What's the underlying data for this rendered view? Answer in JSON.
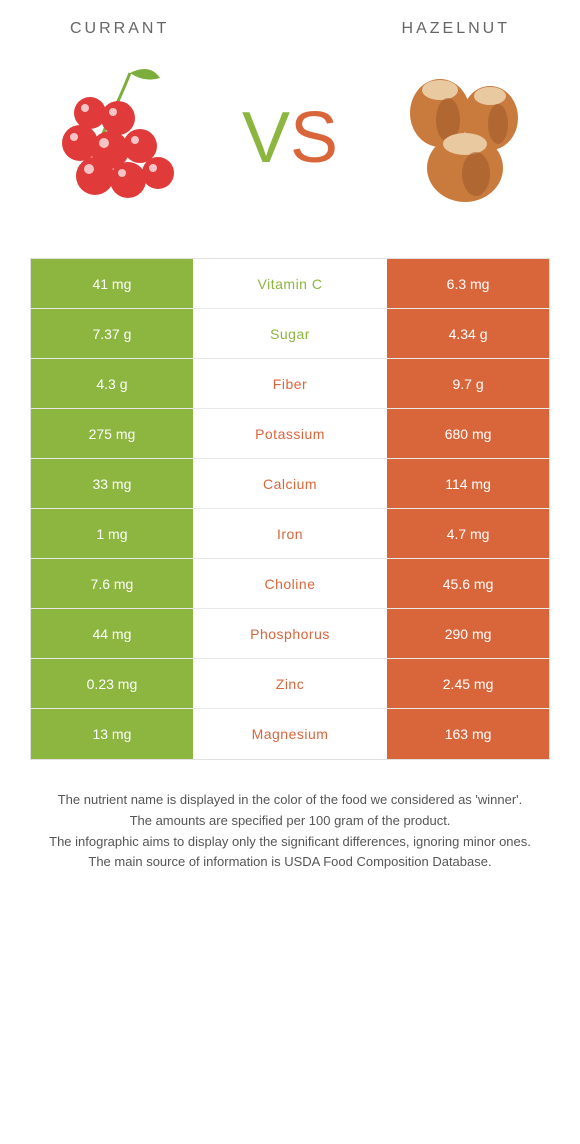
{
  "foods": {
    "left": "Currant",
    "right": "Hazelnut"
  },
  "vs": {
    "left_letter": "V",
    "right_letter": "S"
  },
  "colors": {
    "left": "#8cb63f",
    "right": "#d9663b",
    "row_border": "#e8e8e8",
    "text_footer": "#555555"
  },
  "table": {
    "rows": [
      {
        "left": "41 mg",
        "label": "Vitamin C",
        "right": "6.3 mg",
        "winner": "left"
      },
      {
        "left": "7.37 g",
        "label": "Sugar",
        "right": "4.34 g",
        "winner": "left"
      },
      {
        "left": "4.3 g",
        "label": "Fiber",
        "right": "9.7 g",
        "winner": "right"
      },
      {
        "left": "275 mg",
        "label": "Potassium",
        "right": "680 mg",
        "winner": "right"
      },
      {
        "left": "33 mg",
        "label": "Calcium",
        "right": "114 mg",
        "winner": "right"
      },
      {
        "left": "1 mg",
        "label": "Iron",
        "right": "4.7 mg",
        "winner": "right"
      },
      {
        "left": "7.6 mg",
        "label": "Choline",
        "right": "45.6 mg",
        "winner": "right"
      },
      {
        "left": "44 mg",
        "label": "Phosphorus",
        "right": "290 mg",
        "winner": "right"
      },
      {
        "left": "0.23 mg",
        "label": "Zinc",
        "right": "2.45 mg",
        "winner": "right"
      },
      {
        "left": "13 mg",
        "label": "Magnesium",
        "right": "163 mg",
        "winner": "right"
      }
    ]
  },
  "footer": {
    "line1": "The nutrient name is displayed in the color of the food we considered as 'winner'.",
    "line2": "The amounts are specified per 100 gram of the product.",
    "line3": "The infographic aims to display only the significant differences, ignoring minor ones.",
    "line4": "The main source of information is USDA Food Composition Database."
  }
}
